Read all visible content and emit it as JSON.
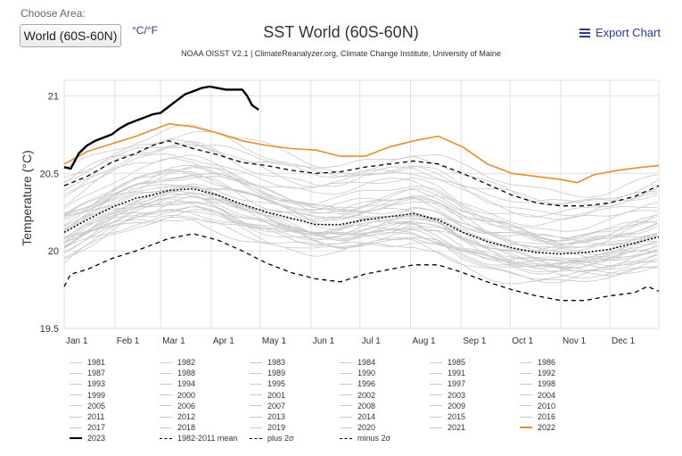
{
  "controls": {
    "choose_area_label": "Choose Area:",
    "area_value": "World (60S-60N)",
    "unit_toggle": "°C/°F",
    "export_label": "Export Chart"
  },
  "colors": {
    "background_series": "#c8c8c8",
    "series_2023": "#000000",
    "series_2022": "#e88e2a",
    "mean": "#000000",
    "accent": "#2a3a8c"
  },
  "icons": {
    "export": "menu-icon"
  },
  "chart_data": {
    "type": "line",
    "title": "SST World (60S-60N)",
    "subtitle": "NOAA OISST V2.1 | ClimateReanalyzer.org, Climate Change Institute, University of Maine",
    "xlabel": "",
    "ylabel": "Temperature (°C)",
    "x_unit": "day of year",
    "xlim": [
      1,
      365
    ],
    "ylim": [
      19.5,
      21.1
    ],
    "yticks": [
      19.5,
      20,
      20.5,
      21
    ],
    "x_ticks": [
      {
        "label": "Jan 1",
        "day": 1
      },
      {
        "label": "Feb 1",
        "day": 32
      },
      {
        "label": "Mar 1",
        "day": 60
      },
      {
        "label": "Apr 1",
        "day": 91
      },
      {
        "label": "May 1",
        "day": 121
      },
      {
        "label": "Jun 1",
        "day": 152
      },
      {
        "label": "Jul 1",
        "day": 182
      },
      {
        "label": "Aug 1",
        "day": 213
      },
      {
        "label": "Sep 1",
        "day": 244
      },
      {
        "label": "Oct 1",
        "day": 274
      },
      {
        "label": "Nov 1",
        "day": 305
      },
      {
        "label": "Dec 1",
        "day": 335
      }
    ],
    "grid": true,
    "legend_position": "bottom",
    "highlight_series": [
      {
        "name": "2023",
        "style": "bold-black",
        "x": [
          1,
          5,
          10,
          15,
          20,
          25,
          30,
          35,
          40,
          45,
          50,
          55,
          60,
          65,
          70,
          75,
          80,
          85,
          90,
          95,
          100,
          105,
          110,
          113,
          116,
          120
        ],
        "y": [
          20.54,
          20.53,
          20.63,
          20.68,
          20.71,
          20.73,
          20.75,
          20.79,
          20.82,
          20.84,
          20.86,
          20.88,
          20.89,
          20.93,
          20.97,
          21.01,
          21.03,
          21.05,
          21.06,
          21.05,
          21.04,
          21.04,
          21.04,
          21.0,
          20.94,
          20.91
        ]
      },
      {
        "name": "2022",
        "style": "orange",
        "x": [
          1,
          15,
          30,
          45,
          55,
          65,
          80,
          95,
          110,
          125,
          140,
          155,
          170,
          185,
          200,
          215,
          230,
          245,
          260,
          275,
          290,
          305,
          315,
          325,
          340,
          355,
          365
        ],
        "y": [
          20.56,
          20.64,
          20.69,
          20.74,
          20.78,
          20.82,
          20.8,
          20.76,
          20.71,
          20.68,
          20.66,
          20.65,
          20.61,
          20.61,
          20.67,
          20.71,
          20.74,
          20.67,
          20.56,
          20.5,
          20.48,
          20.46,
          20.44,
          20.49,
          20.52,
          20.54,
          20.55
        ]
      },
      {
        "name": "plus 2σ",
        "style": "dashed",
        "x": [
          1,
          15,
          30,
          45,
          55,
          65,
          80,
          95,
          110,
          125,
          140,
          155,
          170,
          185,
          200,
          215,
          230,
          245,
          260,
          275,
          290,
          305,
          320,
          335,
          350,
          365
        ],
        "y": [
          20.42,
          20.48,
          20.57,
          20.63,
          20.68,
          20.71,
          20.66,
          20.62,
          20.57,
          20.55,
          20.52,
          20.5,
          20.51,
          20.54,
          20.56,
          20.58,
          20.56,
          20.5,
          20.43,
          20.36,
          20.31,
          20.29,
          20.29,
          20.31,
          20.35,
          20.42
        ]
      },
      {
        "name": "1982-2011 mean",
        "style": "dotted",
        "x": [
          1,
          15,
          30,
          45,
          55,
          65,
          80,
          95,
          110,
          125,
          140,
          155,
          170,
          185,
          200,
          215,
          230,
          245,
          260,
          275,
          290,
          305,
          320,
          335,
          350,
          365
        ],
        "y": [
          20.12,
          20.2,
          20.28,
          20.34,
          20.36,
          20.39,
          20.4,
          20.36,
          20.3,
          20.25,
          20.21,
          20.17,
          20.17,
          20.2,
          20.22,
          20.24,
          20.2,
          20.12,
          20.06,
          20.02,
          19.99,
          19.98,
          19.99,
          20.01,
          20.05,
          20.09
        ]
      },
      {
        "name": "minus 2σ",
        "style": "dashed",
        "x": [
          1,
          5,
          15,
          30,
          45,
          55,
          65,
          80,
          95,
          110,
          125,
          140,
          155,
          170,
          185,
          200,
          215,
          230,
          245,
          260,
          275,
          290,
          305,
          320,
          335,
          350,
          358,
          365
        ],
        "y": [
          19.77,
          19.85,
          19.88,
          19.95,
          20.0,
          20.04,
          20.08,
          20.11,
          20.07,
          20.0,
          19.92,
          19.86,
          19.82,
          19.8,
          19.85,
          19.88,
          19.91,
          19.91,
          19.86,
          19.8,
          19.75,
          19.71,
          19.68,
          19.68,
          19.71,
          19.73,
          19.77,
          19.74
        ]
      }
    ],
    "background_series": [
      {
        "name": "1981",
        "base": 20.0
      },
      {
        "name": "1982",
        "base": 20.05
      },
      {
        "name": "1983",
        "base": 20.15
      },
      {
        "name": "1984",
        "base": 20.05
      },
      {
        "name": "1985",
        "base": 20.03
      },
      {
        "name": "1986",
        "base": 20.07
      },
      {
        "name": "1987",
        "base": 20.17
      },
      {
        "name": "1988",
        "base": 20.15
      },
      {
        "name": "1989",
        "base": 20.08
      },
      {
        "name": "1990",
        "base": 20.14
      },
      {
        "name": "1991",
        "base": 20.16
      },
      {
        "name": "1992",
        "base": 20.12
      },
      {
        "name": "1993",
        "base": 20.1
      },
      {
        "name": "1994",
        "base": 20.12
      },
      {
        "name": "1995",
        "base": 20.18
      },
      {
        "name": "1996",
        "base": 20.13
      },
      {
        "name": "1997",
        "base": 20.25
      },
      {
        "name": "1998",
        "base": 20.33
      },
      {
        "name": "1999",
        "base": 20.1
      },
      {
        "name": "2000",
        "base": 20.1
      },
      {
        "name": "2001",
        "base": 20.22
      },
      {
        "name": "2002",
        "base": 20.27
      },
      {
        "name": "2003",
        "base": 20.3
      },
      {
        "name": "2004",
        "base": 20.26
      },
      {
        "name": "2005",
        "base": 20.3
      },
      {
        "name": "2006",
        "base": 20.26
      },
      {
        "name": "2007",
        "base": 20.22
      },
      {
        "name": "2008",
        "base": 20.18
      },
      {
        "name": "2009",
        "base": 20.32
      },
      {
        "name": "2010",
        "base": 20.36
      },
      {
        "name": "2011",
        "base": 20.2
      },
      {
        "name": "2012",
        "base": 20.3
      },
      {
        "name": "2013",
        "base": 20.32
      },
      {
        "name": "2014",
        "base": 20.4
      },
      {
        "name": "2015",
        "base": 20.5
      },
      {
        "name": "2016",
        "base": 20.6
      },
      {
        "name": "2017",
        "base": 20.48
      },
      {
        "name": "2018",
        "base": 20.42
      },
      {
        "name": "2019",
        "base": 20.52
      },
      {
        "name": "2020",
        "base": 20.55
      },
      {
        "name": "2021",
        "base": 20.47
      }
    ],
    "legend": [
      "1981",
      "1982",
      "1983",
      "1984",
      "1985",
      "1986",
      "1987",
      "1988",
      "1989",
      "1990",
      "1991",
      "1992",
      "1993",
      "1994",
      "1995",
      "1996",
      "1997",
      "1998",
      "1999",
      "2000",
      "2001",
      "2002",
      "2003",
      "2004",
      "2005",
      "2006",
      "2007",
      "2008",
      "2009",
      "2010",
      "2011",
      "2012",
      "2013",
      "2014",
      "2015",
      "2016",
      "2017",
      "2018",
      "2019",
      "2020",
      "2021",
      "2022",
      "2023",
      "1982-2011 mean",
      "plus 2σ",
      "minus 2σ"
    ]
  }
}
